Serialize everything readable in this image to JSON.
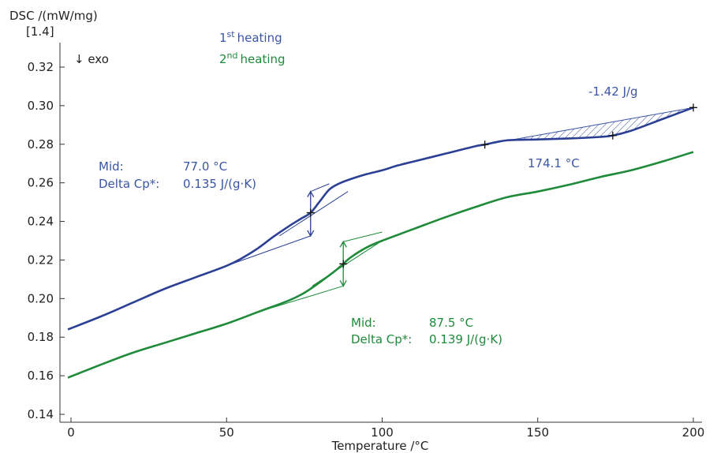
{
  "chart_data": {
    "type": "line",
    "y_axis_label": "DSC /(mW/mg)",
    "y_axis_sublabel": "[1.4]",
    "x_axis_label": "Temperature /°C",
    "exo_label": "↓ exo",
    "xlim": [
      -1,
      201
    ],
    "ylim": [
      0.14,
      0.335
    ],
    "x_ticks": [
      0,
      50,
      100,
      150,
      200
    ],
    "y_ticks": [
      0.14,
      0.16,
      0.18,
      0.2,
      0.22,
      0.24,
      0.26,
      0.28,
      0.3,
      0.32
    ],
    "grid": false,
    "legend": [
      {
        "prefix": "1",
        "sup": "st",
        "label": "heating",
        "color": "#3a55a4"
      },
      {
        "prefix": "2",
        "sup": "nd",
        "label": "heating",
        "color": "#1e8a3a"
      }
    ],
    "series": [
      {
        "name": "1st heating",
        "color": "#2b3f94",
        "x": [
          -1,
          10,
          20,
          30,
          40,
          50,
          55,
          60,
          65,
          70,
          74,
          77,
          80,
          83,
          86,
          90,
          95,
          100,
          105,
          110,
          120,
          130,
          133,
          140,
          150,
          160,
          170,
          174.1,
          180,
          190,
          200
        ],
        "y": [
          0.184,
          0.191,
          0.198,
          0.205,
          0.211,
          0.217,
          0.221,
          0.226,
          0.232,
          0.2375,
          0.2415,
          0.2445,
          0.2505,
          0.2565,
          0.2595,
          0.262,
          0.2645,
          0.2665,
          0.269,
          0.271,
          0.275,
          0.279,
          0.2798,
          0.282,
          0.2825,
          0.283,
          0.2838,
          0.2845,
          0.287,
          0.293,
          0.299
        ]
      },
      {
        "name": "2nd heating",
        "color": "#1e8a3a",
        "x": [
          -1,
          10,
          20,
          30,
          40,
          50,
          60,
          70,
          75,
          80,
          85,
          87.5,
          90,
          95,
          100,
          110,
          120,
          130,
          140,
          150,
          160,
          170,
          180,
          190,
          200
        ],
        "y": [
          0.159,
          0.166,
          0.172,
          0.177,
          0.182,
          0.187,
          0.193,
          0.199,
          0.203,
          0.2085,
          0.2145,
          0.218,
          0.2215,
          0.2265,
          0.23,
          0.236,
          0.242,
          0.2475,
          0.2525,
          0.2555,
          0.259,
          0.263,
          0.2665,
          0.271,
          0.276
        ]
      }
    ],
    "annotations": {
      "first": {
        "color": "#3a55a4",
        "mid_label": "Mid:",
        "mid_value": "77.0 °C",
        "dcp_label": "Delta Cp*:",
        "dcp_value": "0.135 J/(g·K)",
        "peak_value": "174.1 °C",
        "area_value": "-1.42 J/g",
        "mid_temp": 77.0,
        "mid_y": 0.2445,
        "step_low": 0.2325,
        "step_high": 0.2555,
        "peak_start_x": 133,
        "peak_x": 174.1,
        "peak_end_x": 200
      },
      "second": {
        "color": "#1e8a3a",
        "mid_label": "Mid:",
        "mid_value": "87.5 °C",
        "dcp_label": "Delta Cp*:",
        "dcp_value": "0.139 J/(g·K)",
        "mid_temp": 87.5,
        "mid_y": 0.218,
        "step_low": 0.2065,
        "step_high": 0.2295
      }
    }
  }
}
